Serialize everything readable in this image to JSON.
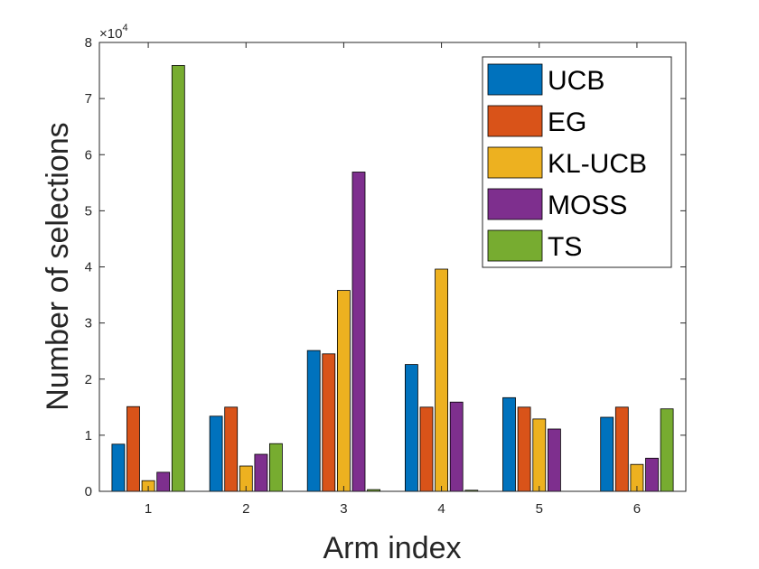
{
  "chart_data": {
    "type": "bar",
    "categories": [
      "1",
      "2",
      "3",
      "4",
      "5",
      "6"
    ],
    "series": [
      {
        "name": "UCB",
        "color": "#0072BD",
        "values": [
          8400,
          13400,
          25100,
          22600,
          16700,
          13200
        ]
      },
      {
        "name": "EG",
        "color": "#D95319",
        "values": [
          15100,
          15000,
          24500,
          15000,
          15000,
          15000
        ]
      },
      {
        "name": "KL-UCB",
        "color": "#EDB120",
        "values": [
          1900,
          4500,
          35800,
          39600,
          12900,
          4800
        ]
      },
      {
        "name": "MOSS",
        "color": "#7E2F8E",
        "values": [
          3400,
          6600,
          56900,
          15900,
          11100,
          5900
        ]
      },
      {
        "name": "TS",
        "color": "#77AC30",
        "values": [
          75900,
          8500,
          300,
          200,
          0,
          14700
        ]
      }
    ],
    "xlabel": "Arm index",
    "ylabel": "Number of selections",
    "ylim": [
      0,
      80000
    ],
    "yticks": [
      "0",
      "1",
      "2",
      "3",
      "4",
      "5",
      "6",
      "7",
      "8"
    ],
    "y_multiplier": {
      "base": "×10",
      "exponent": "4"
    },
    "legend_position": "top-right",
    "grid": false
  }
}
